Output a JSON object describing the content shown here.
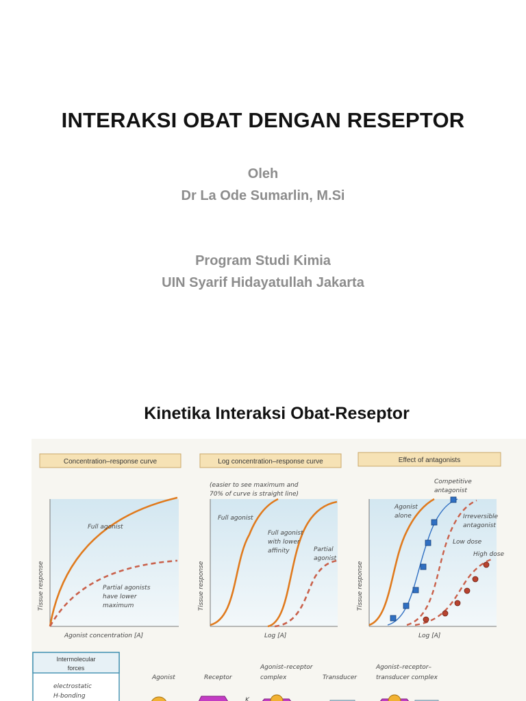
{
  "slide": {
    "title": "INTERAKSI OBAT DENGAN RESEPTOR",
    "by_label": "Oleh",
    "author": "Dr La Ode Sumarlin, M.Si",
    "program": "Program Studi Kimia",
    "institution": "UIN Syarif Hidayatullah Jakarta",
    "section_title": "Kinetika Interaksi Obat-Reseptor"
  },
  "figure": {
    "colors": {
      "curve": "#e07a1d",
      "dashed": "#c9604a",
      "panel_bg": "#dcecf3",
      "header_bg": "#f6e2b5",
      "square_marker": "#2f6fc2",
      "circle_marker": "#b7432f",
      "receptor": "#c33cc4",
      "agonist": "#f2b233"
    },
    "panels": [
      {
        "header": "Concentration–response curve",
        "ylabel": "Tissue response",
        "xlabel": "Agonist concentration [A]",
        "labels": [
          "Full agonist",
          "Partial agonists",
          "have lower",
          "maximum"
        ]
      },
      {
        "header": "Log concentration–response curve",
        "note": [
          "(easier to see maximum and",
          "70% of curve is straight line)"
        ],
        "ylabel": "Tissue response",
        "xlabel": "Log [A]",
        "labels": [
          "Full agonist",
          "Full agonist",
          "with lower",
          "affinity",
          "Partial",
          "agonist"
        ]
      },
      {
        "header": "Effect of antagonists",
        "ylabel": "Tissue response",
        "xlabel": "Log [A]",
        "labels": [
          "Agonist",
          "alone",
          "Competitive",
          "antagonist",
          "Irreversible",
          "antagonist",
          "Low dose",
          "High dose"
        ]
      }
    ],
    "bottom": {
      "forces_box": [
        "Intermolecular",
        "forces",
        "electrostatic",
        "H-bonding"
      ],
      "labels": [
        "Agonist",
        "Receptor",
        "Agonist–receptor",
        "complex",
        "Transducer",
        "Agonist–receptor–",
        "transducer complex"
      ],
      "k_label": "K"
    }
  }
}
